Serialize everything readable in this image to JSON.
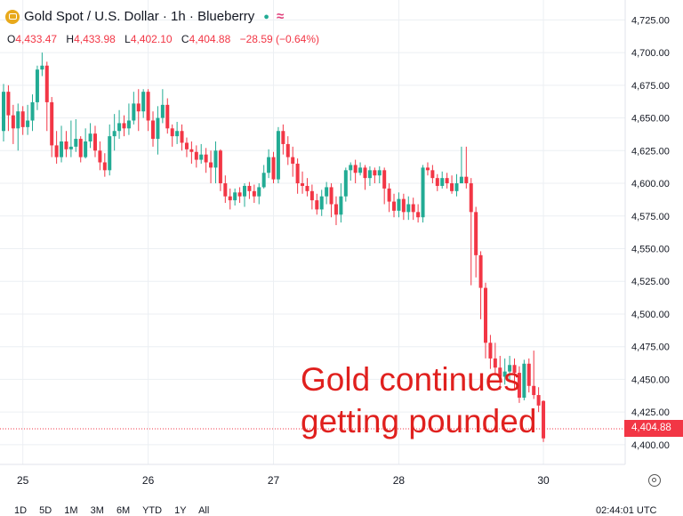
{
  "header": {
    "symbol": "Gold Spot / U.S. Dollar · 1h · Blueberry",
    "open_label": "O",
    "open": "4,433.47",
    "high_label": "H",
    "high": "4,433.98",
    "low_label": "L",
    "low": "4,402.10",
    "close_label": "C",
    "close": "4,404.88",
    "change": "−28.59 (−0.64%)"
  },
  "annotation": {
    "line1": "Gold continues",
    "line2": "getting pounded"
  },
  "last_price": "4,404.88",
  "periods": [
    "1D",
    "5D",
    "1M",
    "3M",
    "6M",
    "YTD",
    "1Y",
    "All"
  ],
  "clock": "02:44:01 UTC",
  "colors": {
    "up": "#22ab94",
    "down": "#f23645",
    "annotation": "#e0201e",
    "grid": "#eceff3"
  },
  "icons": {
    "symbol": "gold-coin-icon",
    "status": "market-dot-icon",
    "indicator": "wave-icon",
    "settings": "gear-icon"
  },
  "chart_data": {
    "type": "candlestick",
    "y_ticks": [
      "4,725.00",
      "4,700.00",
      "4,675.00",
      "4,650.00",
      "4,625.00",
      "4,600.00",
      "4,575.00",
      "4,550.00",
      "4,525.00",
      "4,500.00",
      "4,475.00",
      "4,450.00",
      "4,425.00",
      "4,400.00"
    ],
    "y_tick_values": [
      4725,
      4700,
      4675,
      4650,
      4625,
      4600,
      4575,
      4550,
      4525,
      4500,
      4475,
      4450,
      4425,
      4400
    ],
    "ylim": [
      4387,
      4730
    ],
    "x_ticks": [
      "25",
      "26",
      "27",
      "28",
      "30"
    ],
    "x_tick_index": [
      4,
      30,
      56,
      82,
      112
    ],
    "last_price": 4404.88,
    "candles": [
      {
        "o": 4640,
        "c": 4670,
        "h": 4676,
        "l": 4632
      },
      {
        "o": 4670,
        "c": 4652,
        "h": 4675,
        "l": 4640
      },
      {
        "o": 4652,
        "c": 4642,
        "h": 4660,
        "l": 4630
      },
      {
        "o": 4642,
        "c": 4655,
        "h": 4661,
        "l": 4625
      },
      {
        "o": 4655,
        "c": 4643,
        "h": 4659,
        "l": 4637
      },
      {
        "o": 4643,
        "c": 4648,
        "h": 4660,
        "l": 4637
      },
      {
        "o": 4648,
        "c": 4662,
        "h": 4668,
        "l": 4640
      },
      {
        "o": 4662,
        "c": 4687,
        "h": 4690,
        "l": 4656
      },
      {
        "o": 4687,
        "c": 4690,
        "h": 4700,
        "l": 4682
      },
      {
        "o": 4690,
        "c": 4662,
        "h": 4693,
        "l": 4640
      },
      {
        "o": 4662,
        "c": 4629,
        "h": 4666,
        "l": 4620
      },
      {
        "o": 4629,
        "c": 4620,
        "h": 4640,
        "l": 4615
      },
      {
        "o": 4620,
        "c": 4632,
        "h": 4644,
        "l": 4616
      },
      {
        "o": 4632,
        "c": 4626,
        "h": 4640,
        "l": 4620
      },
      {
        "o": 4626,
        "c": 4628,
        "h": 4648,
        "l": 4620
      },
      {
        "o": 4628,
        "c": 4634,
        "h": 4649,
        "l": 4624
      },
      {
        "o": 4634,
        "c": 4620,
        "h": 4636,
        "l": 4616
      },
      {
        "o": 4620,
        "c": 4632,
        "h": 4642,
        "l": 4619
      },
      {
        "o": 4632,
        "c": 4638,
        "h": 4646,
        "l": 4627
      },
      {
        "o": 4638,
        "c": 4625,
        "h": 4644,
        "l": 4620
      },
      {
        "o": 4625,
        "c": 4616,
        "h": 4632,
        "l": 4610
      },
      {
        "o": 4616,
        "c": 4610,
        "h": 4623,
        "l": 4605
      },
      {
        "o": 4610,
        "c": 4636,
        "h": 4645,
        "l": 4606
      },
      {
        "o": 4636,
        "c": 4640,
        "h": 4653,
        "l": 4625
      },
      {
        "o": 4640,
        "c": 4646,
        "h": 4656,
        "l": 4634
      },
      {
        "o": 4646,
        "c": 4642,
        "h": 4652,
        "l": 4636
      },
      {
        "o": 4642,
        "c": 4648,
        "h": 4661,
        "l": 4637
      },
      {
        "o": 4648,
        "c": 4661,
        "h": 4670,
        "l": 4645
      },
      {
        "o": 4661,
        "c": 4655,
        "h": 4672,
        "l": 4640
      },
      {
        "o": 4655,
        "c": 4670,
        "h": 4672,
        "l": 4650
      },
      {
        "o": 4670,
        "c": 4648,
        "h": 4672,
        "l": 4640
      },
      {
        "o": 4648,
        "c": 4634,
        "h": 4655,
        "l": 4628
      },
      {
        "o": 4634,
        "c": 4650,
        "h": 4659,
        "l": 4622
      },
      {
        "o": 4650,
        "c": 4660,
        "h": 4672,
        "l": 4646
      },
      {
        "o": 4660,
        "c": 4642,
        "h": 4665,
        "l": 4638
      },
      {
        "o": 4642,
        "c": 4636,
        "h": 4645,
        "l": 4628
      },
      {
        "o": 4636,
        "c": 4640,
        "h": 4647,
        "l": 4630
      },
      {
        "o": 4640,
        "c": 4631,
        "h": 4645,
        "l": 4625
      },
      {
        "o": 4631,
        "c": 4626,
        "h": 4635,
        "l": 4620
      },
      {
        "o": 4626,
        "c": 4624,
        "h": 4632,
        "l": 4615
      },
      {
        "o": 4624,
        "c": 4618,
        "h": 4629,
        "l": 4612
      },
      {
        "o": 4618,
        "c": 4622,
        "h": 4630,
        "l": 4615
      },
      {
        "o": 4622,
        "c": 4616,
        "h": 4627,
        "l": 4608
      },
      {
        "o": 4616,
        "c": 4612,
        "h": 4625,
        "l": 4600
      },
      {
        "o": 4612,
        "c": 4625,
        "h": 4632,
        "l": 4600
      },
      {
        "o": 4625,
        "c": 4600,
        "h": 4626,
        "l": 4594
      },
      {
        "o": 4600,
        "c": 4590,
        "h": 4606,
        "l": 4585
      },
      {
        "o": 4590,
        "c": 4587,
        "h": 4596,
        "l": 4580
      },
      {
        "o": 4587,
        "c": 4593,
        "h": 4596,
        "l": 4583
      },
      {
        "o": 4593,
        "c": 4590,
        "h": 4597,
        "l": 4585
      },
      {
        "o": 4590,
        "c": 4598,
        "h": 4600,
        "l": 4582
      },
      {
        "o": 4598,
        "c": 4594,
        "h": 4601,
        "l": 4588
      },
      {
        "o": 4594,
        "c": 4590,
        "h": 4599,
        "l": 4585
      },
      {
        "o": 4590,
        "c": 4597,
        "h": 4600,
        "l": 4584
      },
      {
        "o": 4597,
        "c": 4608,
        "h": 4614,
        "l": 4596
      },
      {
        "o": 4608,
        "c": 4620,
        "h": 4626,
        "l": 4604
      },
      {
        "o": 4620,
        "c": 4603,
        "h": 4624,
        "l": 4600
      },
      {
        "o": 4603,
        "c": 4640,
        "h": 4643,
        "l": 4600
      },
      {
        "o": 4640,
        "c": 4630,
        "h": 4645,
        "l": 4622
      },
      {
        "o": 4630,
        "c": 4620,
        "h": 4636,
        "l": 4614
      },
      {
        "o": 4620,
        "c": 4615,
        "h": 4628,
        "l": 4605
      },
      {
        "o": 4615,
        "c": 4600,
        "h": 4619,
        "l": 4592
      },
      {
        "o": 4600,
        "c": 4598,
        "h": 4609,
        "l": 4592
      },
      {
        "o": 4598,
        "c": 4594,
        "h": 4604,
        "l": 4590
      },
      {
        "o": 4594,
        "c": 4587,
        "h": 4599,
        "l": 4580
      },
      {
        "o": 4587,
        "c": 4580,
        "h": 4592,
        "l": 4576
      },
      {
        "o": 4580,
        "c": 4590,
        "h": 4595,
        "l": 4575
      },
      {
        "o": 4590,
        "c": 4597,
        "h": 4601,
        "l": 4584
      },
      {
        "o": 4597,
        "c": 4584,
        "h": 4600,
        "l": 4574
      },
      {
        "o": 4584,
        "c": 4576,
        "h": 4590,
        "l": 4568
      },
      {
        "o": 4576,
        "c": 4590,
        "h": 4600,
        "l": 4570
      },
      {
        "o": 4590,
        "c": 4610,
        "h": 4612,
        "l": 4586
      },
      {
        "o": 4610,
        "c": 4614,
        "h": 4616,
        "l": 4602
      },
      {
        "o": 4614,
        "c": 4608,
        "h": 4618,
        "l": 4600
      },
      {
        "o": 4608,
        "c": 4612,
        "h": 4616,
        "l": 4606
      },
      {
        "o": 4612,
        "c": 4604,
        "h": 4614,
        "l": 4595
      },
      {
        "o": 4604,
        "c": 4610,
        "h": 4613,
        "l": 4598
      },
      {
        "o": 4610,
        "c": 4606,
        "h": 4612,
        "l": 4600
      },
      {
        "o": 4606,
        "c": 4610,
        "h": 4613,
        "l": 4600
      },
      {
        "o": 4610,
        "c": 4596,
        "h": 4612,
        "l": 4584
      },
      {
        "o": 4596,
        "c": 4586,
        "h": 4600,
        "l": 4578
      },
      {
        "o": 4586,
        "c": 4579,
        "h": 4592,
        "l": 4574
      },
      {
        "o": 4579,
        "c": 4588,
        "h": 4593,
        "l": 4574
      },
      {
        "o": 4588,
        "c": 4578,
        "h": 4592,
        "l": 4572
      },
      {
        "o": 4578,
        "c": 4584,
        "h": 4590,
        "l": 4572
      },
      {
        "o": 4584,
        "c": 4578,
        "h": 4589,
        "l": 4572
      },
      {
        "o": 4578,
        "c": 4574,
        "h": 4584,
        "l": 4570
      },
      {
        "o": 4574,
        "c": 4612,
        "h": 4614,
        "l": 4570
      },
      {
        "o": 4612,
        "c": 4610,
        "h": 4616,
        "l": 4606
      },
      {
        "o": 4610,
        "c": 4604,
        "h": 4614,
        "l": 4600
      },
      {
        "o": 4604,
        "c": 4598,
        "h": 4607,
        "l": 4594
      },
      {
        "o": 4598,
        "c": 4604,
        "h": 4609,
        "l": 4596
      },
      {
        "o": 4604,
        "c": 4600,
        "h": 4608,
        "l": 4596
      },
      {
        "o": 4600,
        "c": 4594,
        "h": 4606,
        "l": 4592
      },
      {
        "o": 4594,
        "c": 4600,
        "h": 4607,
        "l": 4590
      },
      {
        "o": 4600,
        "c": 4605,
        "h": 4628,
        "l": 4600
      },
      {
        "o": 4605,
        "c": 4600,
        "h": 4628,
        "l": 4596
      },
      {
        "o": 4600,
        "c": 4578,
        "h": 4604,
        "l": 4522
      },
      {
        "o": 4578,
        "c": 4545,
        "h": 4582,
        "l": 4528
      },
      {
        "o": 4545,
        "c": 4520,
        "h": 4548,
        "l": 4496
      },
      {
        "o": 4520,
        "c": 4478,
        "h": 4524,
        "l": 4466
      },
      {
        "o": 4478,
        "c": 4466,
        "h": 4484,
        "l": 4458
      },
      {
        "o": 4466,
        "c": 4459,
        "h": 4478,
        "l": 4453
      },
      {
        "o": 4459,
        "c": 4452,
        "h": 4468,
        "l": 4442
      },
      {
        "o": 4452,
        "c": 4456,
        "h": 4466,
        "l": 4446
      },
      {
        "o": 4456,
        "c": 4461,
        "h": 4468,
        "l": 4448
      },
      {
        "o": 4461,
        "c": 4455,
        "h": 4466,
        "l": 4442
      },
      {
        "o": 4455,
        "c": 4436,
        "h": 4460,
        "l": 4432
      },
      {
        "o": 4436,
        "c": 4462,
        "h": 4465,
        "l": 4434
      },
      {
        "o": 4462,
        "c": 4445,
        "h": 4466,
        "l": 4440
      },
      {
        "o": 4445,
        "c": 4438,
        "h": 4472,
        "l": 4435
      },
      {
        "o": 4438,
        "c": 4430,
        "h": 4444,
        "l": 4425
      },
      {
        "o": 4433.47,
        "c": 4404.88,
        "h": 4433.98,
        "l": 4402.1
      }
    ]
  }
}
